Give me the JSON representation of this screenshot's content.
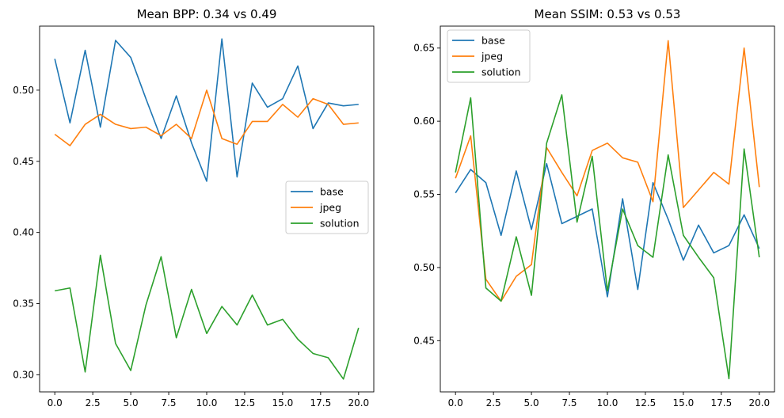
{
  "chart_data": [
    {
      "type": "line",
      "title": "Mean BPP: 0.34 vs 0.49",
      "xlabel": "",
      "ylabel": "",
      "xlim": [
        -1,
        21
      ],
      "ylim": [
        0.288,
        0.545
      ],
      "xticks": [
        0,
        2.5,
        5,
        7.5,
        10,
        12.5,
        15,
        17.5,
        20
      ],
      "xtick_labels": [
        "0.0",
        "2.5",
        "5.0",
        "7.5",
        "10.0",
        "12.5",
        "15.0",
        "17.5",
        "20.0"
      ],
      "yticks": [
        0.3,
        0.35,
        0.4,
        0.45,
        0.5
      ],
      "ytick_labels": [
        "0.30",
        "0.35",
        "0.40",
        "0.45",
        "0.50"
      ],
      "legend_position": "center-right",
      "grid": false,
      "x": [
        0,
        1,
        2,
        3,
        4,
        5,
        6,
        7,
        8,
        9,
        10,
        11,
        12,
        13,
        14,
        15,
        16,
        17,
        18,
        19,
        20
      ],
      "series": [
        {
          "name": "base",
          "color": "#1f77b4",
          "values": [
            0.522,
            0.477,
            0.528,
            0.474,
            0.535,
            0.523,
            0.494,
            0.466,
            0.496,
            0.463,
            0.436,
            0.536,
            0.439,
            0.505,
            0.488,
            0.494,
            0.517,
            0.473,
            0.491,
            0.489,
            0.49
          ]
        },
        {
          "name": "jpeg",
          "color": "#ff7f0e",
          "values": [
            0.469,
            0.461,
            0.476,
            0.483,
            0.476,
            0.473,
            0.474,
            0.468,
            0.476,
            0.466,
            0.5,
            0.466,
            0.462,
            0.478,
            0.478,
            0.49,
            0.481,
            0.494,
            0.49,
            0.476,
            0.477
          ]
        },
        {
          "name": "solution",
          "color": "#2ca02c",
          "values": [
            0.359,
            0.361,
            0.302,
            0.384,
            0.322,
            0.303,
            0.349,
            0.383,
            0.326,
            0.36,
            0.329,
            0.348,
            0.335,
            0.356,
            0.335,
            0.339,
            0.325,
            0.315,
            0.312,
            0.297,
            0.333
          ]
        }
      ]
    },
    {
      "type": "line",
      "title": "Mean SSIM: 0.53 vs 0.53",
      "xlabel": "",
      "ylabel": "",
      "xlim": [
        -1,
        21
      ],
      "ylim": [
        0.415,
        0.665
      ],
      "xticks": [
        0,
        2.5,
        5,
        7.5,
        10,
        12.5,
        15,
        17.5,
        20
      ],
      "xtick_labels": [
        "0.0",
        "2.5",
        "5.0",
        "7.5",
        "10.0",
        "12.5",
        "15.0",
        "17.5",
        "20.0"
      ],
      "yticks": [
        0.45,
        0.5,
        0.55,
        0.6,
        0.65
      ],
      "ytick_labels": [
        "0.45",
        "0.50",
        "0.55",
        "0.60",
        "0.65"
      ],
      "legend_position": "top-left",
      "grid": false,
      "x": [
        0,
        1,
        2,
        3,
        4,
        5,
        6,
        7,
        8,
        9,
        10,
        11,
        12,
        13,
        14,
        15,
        16,
        17,
        18,
        19,
        20
      ],
      "series": [
        {
          "name": "base",
          "color": "#1f77b4",
          "values": [
            0.551,
            0.567,
            0.558,
            0.522,
            0.566,
            0.526,
            0.571,
            0.53,
            0.535,
            0.54,
            0.48,
            0.547,
            0.485,
            0.558,
            0.533,
            0.505,
            0.529,
            0.51,
            0.515,
            0.536,
            0.513
          ]
        },
        {
          "name": "jpeg",
          "color": "#ff7f0e",
          "values": [
            0.561,
            0.59,
            0.492,
            0.477,
            0.494,
            0.502,
            0.582,
            0.565,
            0.549,
            0.58,
            0.585,
            0.575,
            0.572,
            0.545,
            0.655,
            0.541,
            0.553,
            0.565,
            0.557,
            0.65,
            0.555
          ]
        },
        {
          "name": "solution",
          "color": "#2ca02c",
          "values": [
            0.565,
            0.616,
            0.486,
            0.477,
            0.521,
            0.481,
            0.585,
            0.618,
            0.531,
            0.576,
            0.484,
            0.54,
            0.515,
            0.507,
            0.577,
            0.522,
            0.507,
            0.493,
            0.424,
            0.581,
            0.507
          ]
        }
      ]
    }
  ]
}
